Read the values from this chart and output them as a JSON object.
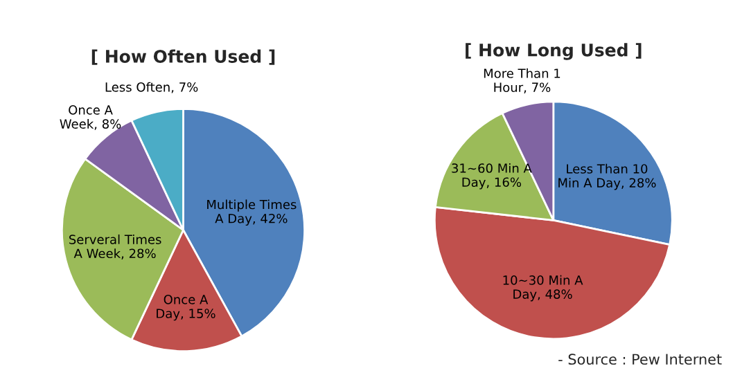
{
  "chart_data": [
    {
      "type": "pie",
      "title": "[ How Often Used ]",
      "categories": [
        "Multiple Times\nA Day",
        "Once A\nDay",
        "Serveral Times\nA Week",
        "Once A\nWeek",
        "Less Often"
      ],
      "values": [
        42,
        15,
        28,
        8,
        7
      ],
      "value_labels": [
        "42%",
        "15%",
        "28%",
        "8%",
        "7%"
      ],
      "colors": [
        "#4f81bd",
        "#c0504d",
        "#9bbb59",
        "#8064a2",
        "#4bacc6"
      ]
    },
    {
      "type": "pie",
      "title": "[ How Long Used ]",
      "categories": [
        "Less Than 10\nMin A Day",
        "10~30 Min A\nDay",
        "31~60 Min A\nDay",
        "More Than 1\nHour"
      ],
      "values": [
        28,
        48,
        16,
        7
      ],
      "value_labels": [
        "28%",
        "48%",
        "16%",
        "7%"
      ],
      "colors": [
        "#4f81bd",
        "#c0504d",
        "#9bbb59",
        "#8064a2"
      ],
      "annotations": [
        "- Source : Pew Internet"
      ]
    }
  ]
}
